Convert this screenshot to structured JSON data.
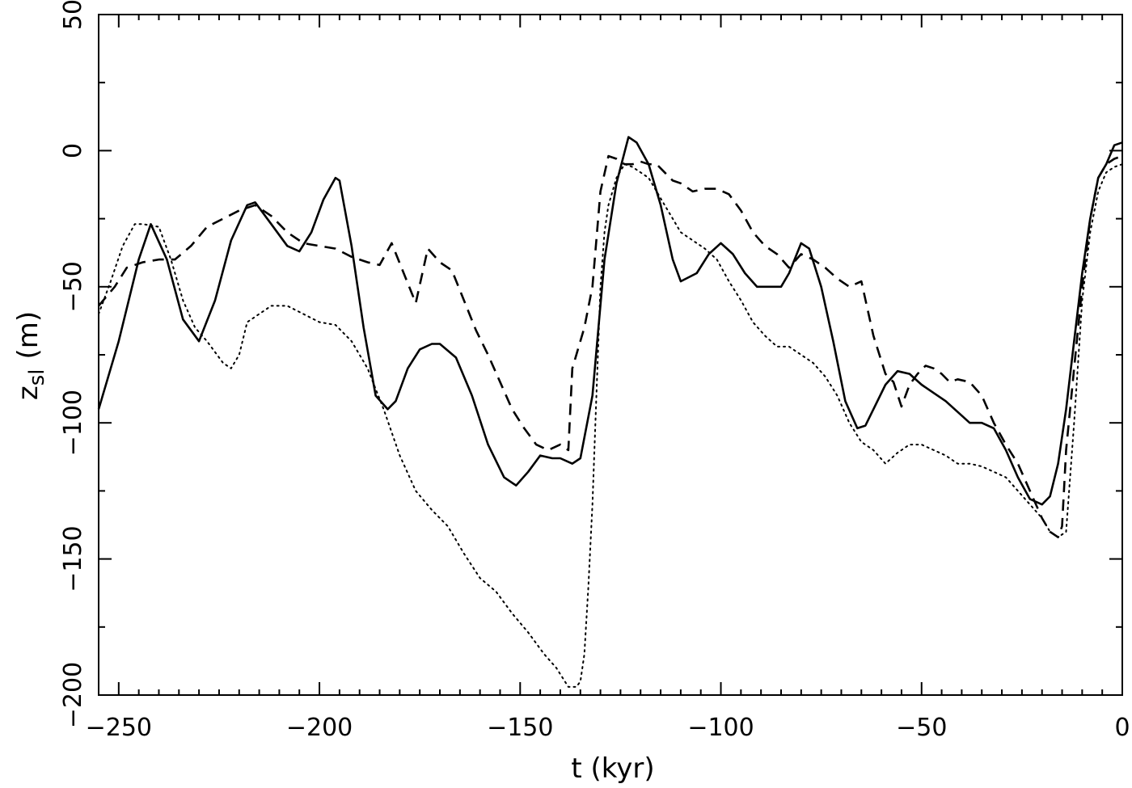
{
  "chart_data": {
    "type": "line",
    "xlabel": "t (kyr)",
    "ylabel_main": "z",
    "ylabel_sub": "sl",
    "ylabel_unit": "(m)",
    "xlim": [
      -255,
      0
    ],
    "ylim": [
      -200,
      50
    ],
    "x_ticks": [
      -250,
      -200,
      -150,
      -100,
      -50,
      0
    ],
    "x_tick_labels": [
      "−250",
      "−200",
      "−150",
      "−100",
      "−50",
      "0"
    ],
    "y_ticks": [
      -200,
      -150,
      -100,
      -50,
      0,
      50
    ],
    "y_tick_labels": [
      "−200",
      "−150",
      "−100",
      "−50",
      "0",
      "50"
    ],
    "x_minor_step": 5,
    "y_minor_step": 25,
    "grid": false,
    "legend": "none",
    "series": [
      {
        "style": "solid",
        "x": [
          -255,
          -250,
          -245,
          -242,
          -238,
          -234,
          -230,
          -226,
          -222,
          -218,
          -216,
          -212,
          -208,
          -205,
          -202,
          -199,
          -196,
          -195,
          -192,
          -189,
          -186,
          -183,
          -181,
          -178,
          -175,
          -172,
          -170,
          -166,
          -162,
          -158,
          -154,
          -151,
          -148,
          -145,
          -142,
          -140,
          -137,
          -135,
          -132,
          -129,
          -126,
          -123,
          -121,
          -118,
          -115,
          -112,
          -110,
          -106,
          -103,
          -100,
          -97,
          -94,
          -91,
          -88,
          -85,
          -83,
          -80,
          -78,
          -75,
          -72,
          -69,
          -66,
          -64,
          -62,
          -59,
          -56,
          -53,
          -50,
          -47,
          -44,
          -41,
          -38,
          -35,
          -32,
          -29,
          -26,
          -23,
          -20,
          -18,
          -16,
          -14,
          -12,
          -10,
          -8,
          -6,
          -4,
          -2,
          0
        ],
        "y": [
          -95,
          -70,
          -40,
          -27,
          -40,
          -62,
          -70,
          -55,
          -33,
          -20,
          -19,
          -27,
          -35,
          -37,
          -30,
          -18,
          -10,
          -11,
          -35,
          -65,
          -90,
          -95,
          -92,
          -80,
          -73,
          -71,
          -71,
          -76,
          -90,
          -108,
          -120,
          -123,
          -118,
          -112,
          -113,
          -113,
          -115,
          -113,
          -90,
          -40,
          -12,
          5,
          3,
          -5,
          -20,
          -40,
          -48,
          -45,
          -38,
          -34,
          -38,
          -45,
          -50,
          -50,
          -50,
          -45,
          -34,
          -36,
          -50,
          -70,
          -92,
          -102,
          -101,
          -95,
          -86,
          -81,
          -82,
          -86,
          -89,
          -92,
          -96,
          -100,
          -100,
          -102,
          -110,
          -120,
          -128,
          -130,
          -127,
          -115,
          -95,
          -70,
          -45,
          -25,
          -10,
          -5,
          2,
          3
        ]
      },
      {
        "style": "dashed",
        "x": [
          -255,
          -251,
          -248,
          -244,
          -240,
          -236,
          -232,
          -228,
          -224,
          -220,
          -216,
          -212,
          -208,
          -204,
          -200,
          -196,
          -192,
          -188,
          -185,
          -182,
          -179,
          -176,
          -173,
          -170,
          -167,
          -164,
          -161,
          -158,
          -155,
          -152,
          -149,
          -146,
          -143,
          -140,
          -138,
          -137,
          -136,
          -134,
          -132,
          -130,
          -128,
          -126,
          -124,
          -122,
          -120,
          -118,
          -116,
          -114,
          -112,
          -110,
          -107,
          -104,
          -101,
          -98,
          -95,
          -92,
          -89,
          -86,
          -83,
          -80,
          -77,
          -74,
          -71,
          -68,
          -65,
          -62,
          -59,
          -57,
          -55,
          -53,
          -51,
          -49,
          -47,
          -45,
          -43,
          -41,
          -38,
          -35,
          -32,
          -29,
          -26,
          -23,
          -20,
          -18,
          -16,
          -15,
          -14,
          -12,
          -10,
          -8,
          -6,
          -4,
          -2,
          0
        ],
        "y": [
          -57,
          -50,
          -43,
          -41,
          -40,
          -40,
          -35,
          -28,
          -25,
          -22,
          -20,
          -24,
          -30,
          -34,
          -35,
          -36,
          -39,
          -41,
          -42,
          -34,
          -45,
          -56,
          -36,
          -41,
          -44,
          -55,
          -66,
          -75,
          -85,
          -95,
          -102,
          -108,
          -110,
          -108,
          -110,
          -80,
          -75,
          -65,
          -50,
          -15,
          -2,
          -3,
          -5,
          -5,
          -4,
          -5,
          -5,
          -8,
          -11,
          -12,
          -15,
          -14,
          -14,
          -16,
          -22,
          -30,
          -35,
          -38,
          -43,
          -38,
          -40,
          -43,
          -47,
          -50,
          -48,
          -68,
          -82,
          -85,
          -94,
          -86,
          -82,
          -79,
          -80,
          -82,
          -85,
          -84,
          -85,
          -90,
          -100,
          -108,
          -115,
          -125,
          -135,
          -140,
          -142,
          -138,
          -110,
          -80,
          -50,
          -25,
          -10,
          -5,
          -3,
          -2
        ]
      },
      {
        "style": "dotted",
        "x": [
          -255,
          -252,
          -249,
          -246,
          -244,
          -240,
          -237,
          -234,
          -231,
          -228,
          -224,
          -222,
          -220,
          -218,
          -215,
          -212,
          -208,
          -204,
          -200,
          -196,
          -192,
          -188,
          -184,
          -180,
          -176,
          -172,
          -168,
          -164,
          -160,
          -156,
          -152,
          -148,
          -144,
          -141,
          -138,
          -136,
          -135,
          -134,
          -133,
          -132,
          -131,
          -130,
          -129,
          -128,
          -127,
          -126,
          -124,
          -122,
          -120,
          -118,
          -116,
          -114,
          -112,
          -110,
          -107,
          -104,
          -101,
          -98,
          -95,
          -92,
          -89,
          -86,
          -83,
          -80,
          -77,
          -74,
          -71,
          -68,
          -65,
          -62,
          -59,
          -56,
          -53,
          -50,
          -47,
          -44,
          -41,
          -38,
          -35,
          -32,
          -29,
          -26,
          -23,
          -20,
          -18,
          -16,
          -14,
          -12,
          -10,
          -8,
          -6,
          -4,
          -2,
          0
        ],
        "y": [
          -60,
          -48,
          -35,
          -27,
          -27,
          -28,
          -40,
          -55,
          -65,
          -70,
          -78,
          -80,
          -75,
          -63,
          -60,
          -57,
          -57,
          -60,
          -63,
          -64,
          -70,
          -80,
          -95,
          -112,
          -125,
          -132,
          -138,
          -148,
          -157,
          -162,
          -170,
          -177,
          -185,
          -190,
          -197,
          -197,
          -195,
          -185,
          -160,
          -130,
          -90,
          -50,
          -30,
          -20,
          -15,
          -10,
          -5,
          -6,
          -8,
          -10,
          -15,
          -20,
          -25,
          -30,
          -33,
          -36,
          -40,
          -48,
          -55,
          -63,
          -68,
          -72,
          -72,
          -75,
          -78,
          -83,
          -90,
          -100,
          -107,
          -110,
          -115,
          -111,
          -108,
          -108,
          -110,
          -112,
          -115,
          -115,
          -116,
          -118,
          -120,
          -125,
          -130,
          -135,
          -140,
          -142,
          -140,
          -100,
          -55,
          -30,
          -15,
          -8,
          -6,
          -5
        ]
      }
    ]
  }
}
